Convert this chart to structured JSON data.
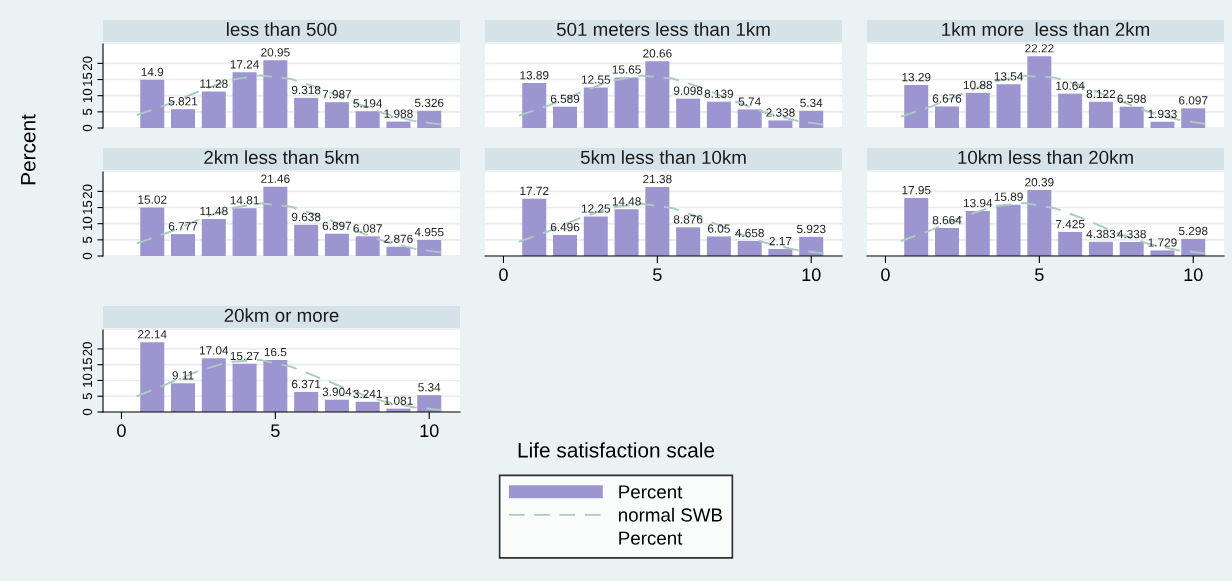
{
  "chart_data": [
    {
      "type": "bar",
      "title": "less than 500",
      "x": [
        1,
        2,
        3,
        4,
        5,
        6,
        7,
        8,
        9,
        10
      ],
      "xlim": [
        -0.6,
        11
      ],
      "ylim": [
        0,
        26
      ],
      "yticks": [
        0,
        5,
        10,
        15,
        20
      ],
      "tick_labels": "y",
      "grid": "y",
      "series": [
        {
          "color": "#9d95cf",
          "values": [
            14.9,
            5.821,
            11.28,
            17.24,
            20.95,
            9.318,
            7.987,
            5.194,
            1.988,
            5.326
          ],
          "value_labels": [
            "14.9",
            "5.821",
            "11.28",
            "17.24",
            "20.95",
            "9.318",
            "7.987",
            "5.194",
            "1.988",
            "5.326"
          ]
        },
        {
          "type": "line",
          "color": "#a9cbc2",
          "line_style": "dashed",
          "x": [
            0.5,
            1.5,
            2.5,
            3.5,
            4.5,
            5.5,
            6.5,
            7.5,
            8.5,
            9.5,
            10.5
          ],
          "values": [
            4.0,
            7.3,
            11.3,
            14.8,
            16.3,
            15.2,
            12.1,
            8.1,
            4.6,
            2.2,
            0.9
          ]
        }
      ]
    },
    {
      "type": "bar",
      "title": "501 meters less than 1km",
      "x": [
        1,
        2,
        3,
        4,
        5,
        6,
        7,
        8,
        9,
        10
      ],
      "xlim": [
        -0.6,
        11
      ],
      "ylim": [
        0,
        26
      ],
      "yticks": [
        0,
        5,
        10,
        15,
        20
      ],
      "tick_labels": false,
      "grid": "y",
      "series": [
        {
          "color": "#9d95cf",
          "values": [
            13.89,
            6.589,
            12.55,
            15.65,
            20.66,
            9.098,
            8.139,
            5.74,
            2.338,
            5.34
          ],
          "value_labels": [
            "13.89",
            "6.589",
            "12.55",
            "15.65",
            "20.66",
            "9.098",
            "8.139",
            "5.74",
            "2.338",
            "5.34"
          ]
        },
        {
          "type": "line",
          "color": "#a9cbc2",
          "line_style": "dashed",
          "x": [
            0.5,
            1.5,
            2.5,
            3.5,
            4.5,
            5.5,
            6.5,
            7.5,
            8.5,
            9.5,
            10.5
          ],
          "values": [
            3.8,
            7.1,
            11.0,
            14.6,
            16.2,
            15.3,
            12.3,
            8.3,
            4.8,
            2.3,
            0.9
          ]
        }
      ]
    },
    {
      "type": "bar",
      "title": "1km more  less than 2km",
      "x": [
        1,
        2,
        3,
        4,
        5,
        6,
        7,
        8,
        9,
        10
      ],
      "xlim": [
        -0.6,
        11
      ],
      "ylim": [
        0,
        26
      ],
      "yticks": [
        0,
        5,
        10,
        15,
        20
      ],
      "tick_labels": false,
      "grid": "y",
      "series": [
        {
          "color": "#9d95cf",
          "values": [
            13.29,
            6.676,
            10.88,
            13.54,
            22.22,
            10.64,
            8.122,
            6.598,
            1.933,
            6.097
          ],
          "value_labels": [
            "13.29",
            "6.676",
            "10.88",
            "13.54",
            "22.22",
            "10.64",
            "8.122",
            "6.598",
            "1.933",
            "6.097"
          ]
        },
        {
          "type": "line",
          "color": "#a9cbc2",
          "line_style": "dashed",
          "x": [
            0.5,
            1.5,
            2.5,
            3.5,
            4.5,
            5.5,
            6.5,
            7.5,
            8.5,
            9.5,
            10.5
          ],
          "values": [
            3.5,
            6.7,
            10.6,
            14.3,
            16.2,
            15.6,
            12.7,
            8.8,
            5.2,
            2.6,
            1.1
          ]
        }
      ]
    },
    {
      "type": "bar",
      "title": "2km less than 5km",
      "ylabel": "Percent",
      "x": [
        1,
        2,
        3,
        4,
        5,
        6,
        7,
        8,
        9,
        10
      ],
      "xlim": [
        -0.6,
        11
      ],
      "ylim": [
        0,
        26
      ],
      "yticks": [
        0,
        5,
        10,
        15,
        20
      ],
      "tick_labels": "y",
      "grid": "y",
      "series": [
        {
          "color": "#9d95cf",
          "values": [
            15.02,
            6.777,
            11.48,
            14.81,
            21.46,
            9.638,
            6.897,
            6.087,
            2.876,
            4.955
          ],
          "value_labels": [
            "15.02",
            "6.777",
            "11.48",
            "14.81",
            "21.46",
            "9.638",
            "6.897",
            "6.087",
            "2.876",
            "4.955"
          ]
        },
        {
          "type": "line",
          "color": "#a9cbc2",
          "line_style": "dashed",
          "x": [
            0.5,
            1.5,
            2.5,
            3.5,
            4.5,
            5.5,
            6.5,
            7.5,
            8.5,
            9.5,
            10.5
          ],
          "values": [
            3.9,
            7.2,
            11.2,
            14.7,
            16.3,
            15.3,
            12.2,
            8.2,
            4.7,
            2.3,
            0.9
          ]
        }
      ]
    },
    {
      "type": "bar",
      "title": "5km less than 10km",
      "x": [
        1,
        2,
        3,
        4,
        5,
        6,
        7,
        8,
        9,
        10
      ],
      "xlim": [
        -0.6,
        11
      ],
      "ylim": [
        0,
        26
      ],
      "xticks": [
        0,
        5,
        10
      ],
      "yticks": [
        0,
        5,
        10,
        15,
        20
      ],
      "tick_labels": "x",
      "grid": "y",
      "series": [
        {
          "color": "#9d95cf",
          "values": [
            17.72,
            6.496,
            12.25,
            14.48,
            21.38,
            8.876,
            6.05,
            4.658,
            2.17,
            5.923
          ],
          "value_labels": [
            "17.72",
            "6.496",
            "12.25",
            "14.48",
            "21.38",
            "8.876",
            "6.05",
            "4.658",
            "2.17",
            "5.923"
          ]
        },
        {
          "type": "line",
          "color": "#a9cbc2",
          "line_style": "dashed",
          "x": [
            0.5,
            1.5,
            2.5,
            3.5,
            4.5,
            5.5,
            6.5,
            7.5,
            8.5,
            9.5,
            10.5
          ],
          "values": [
            4.4,
            7.8,
            11.8,
            15.0,
            16.2,
            14.8,
            11.5,
            7.5,
            4.1,
            1.9,
            0.7
          ]
        }
      ]
    },
    {
      "type": "bar",
      "title": "10km less than 20km",
      "x": [
        1,
        2,
        3,
        4,
        5,
        6,
        7,
        8,
        9,
        10
      ],
      "xlim": [
        -0.6,
        11
      ],
      "ylim": [
        0,
        26
      ],
      "xticks": [
        0,
        5,
        10
      ],
      "yticks": [
        0,
        5,
        10,
        15,
        20
      ],
      "tick_labels": "x",
      "grid": "y",
      "series": [
        {
          "color": "#9d95cf",
          "values": [
            17.95,
            8.664,
            13.94,
            15.89,
            20.39,
            7.425,
            4.383,
            4.338,
            1.729,
            5.298
          ],
          "value_labels": [
            "17.95",
            "8.664",
            "13.94",
            "15.89",
            "20.39",
            "7.425",
            "4.383",
            "4.338",
            "1.729",
            "5.298"
          ]
        },
        {
          "type": "line",
          "color": "#a9cbc2",
          "line_style": "dashed",
          "x": [
            0.5,
            1.5,
            2.5,
            3.5,
            4.5,
            5.5,
            6.5,
            7.5,
            8.5,
            9.5,
            10.5
          ],
          "values": [
            4.6,
            8.1,
            12.1,
            15.3,
            16.4,
            14.8,
            11.3,
            7.2,
            3.9,
            1.8,
            0.7
          ]
        }
      ]
    },
    {
      "type": "bar",
      "title": "20km or more",
      "xlabel": "Life satisfaction scale",
      "legend": "bottom",
      "annotations": [
        "Percent"
      ],
      "x": [
        1,
        2,
        3,
        4,
        5,
        6,
        7,
        8,
        9,
        10
      ],
      "xlim": [
        -0.6,
        11
      ],
      "ylim": [
        0,
        26
      ],
      "xticks": [
        0,
        5,
        10
      ],
      "yticks": [
        0,
        5,
        10,
        15,
        20
      ],
      "grid": "y",
      "series": [
        {
          "name": "Percent",
          "color": "#9d95cf",
          "values": [
            22.14,
            9.11,
            17.04,
            15.27,
            16.5,
            6.371,
            3.904,
            3.241,
            1.081,
            5.34
          ],
          "value_labels": [
            "22.14",
            "9.11",
            "17.04",
            "15.27",
            "16.5",
            "6.371",
            "3.904",
            "3.241",
            "1.081",
            "5.34"
          ]
        },
        {
          "name": "normal SWB",
          "type": "line",
          "color": "#a9cbc2",
          "line_style": "dashed",
          "x": [
            0.5,
            1.5,
            2.5,
            3.5,
            4.5,
            5.5,
            6.5,
            7.5,
            8.5,
            9.5,
            10.5
          ],
          "values": [
            5.0,
            9.0,
            13.0,
            15.9,
            16.5,
            14.4,
            10.6,
            6.6,
            3.4,
            1.5,
            0.5
          ]
        }
      ]
    }
  ]
}
